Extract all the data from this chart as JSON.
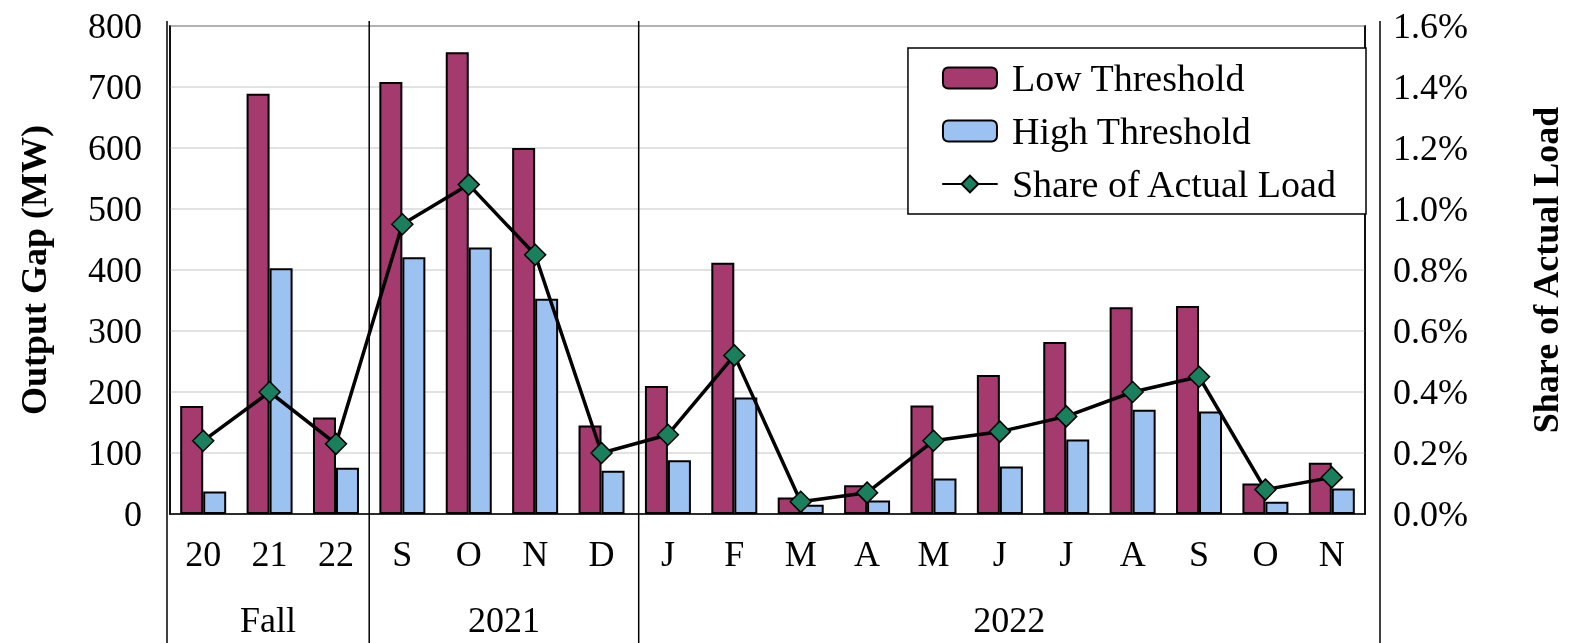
{
  "chart_data": {
    "type": "bar",
    "categories": [
      "20",
      "21",
      "22",
      "S",
      "O",
      "N",
      "D",
      "J",
      "F",
      "M",
      "A",
      "M",
      "J",
      "J",
      "A",
      "S",
      "O",
      "N"
    ],
    "series": [
      {
        "name": "Low Threshold",
        "color": "#a43a6e",
        "values": [
          177,
          689,
          158,
          708,
          757,
          600,
          145,
          210,
          412,
          27,
          47,
          178,
          228,
          282,
          339,
          341,
          50,
          84
        ]
      },
      {
        "name": "High Threshold",
        "color": "#9cc2f2",
        "values": [
          37,
          403,
          76,
          421,
          437,
          353,
          71,
          88,
          191,
          15,
          22,
          58,
          78,
          122,
          171,
          168,
          20,
          42
        ]
      },
      {
        "name": "Share of Actual Load",
        "type": "line",
        "axis": "y2",
        "color": "#000000",
        "values": [
          0.24,
          0.4,
          0.23,
          0.95,
          1.08,
          0.85,
          0.2,
          0.26,
          0.52,
          0.04,
          0.07,
          0.24,
          0.27,
          0.32,
          0.4,
          0.45,
          0.08,
          0.12
        ]
      }
    ],
    "ylabel": "Output Gap (MW)",
    "y2label": "Share of Actual Load",
    "ylim": [
      0,
      800
    ],
    "yticks": [
      0,
      100,
      200,
      300,
      400,
      500,
      600,
      700,
      800
    ],
    "y2lim": [
      0,
      1.6
    ],
    "y2ticks": [
      {
        "value": 0,
        "label": "0.0%"
      },
      {
        "value": 0.2,
        "label": "0.2%"
      },
      {
        "value": 0.4,
        "label": "0.4%"
      },
      {
        "value": 0.6,
        "label": "0.6%"
      },
      {
        "value": 0.8,
        "label": "0.8%"
      },
      {
        "value": 1.0,
        "label": "1.0%"
      },
      {
        "value": 1.2,
        "label": "1.2%"
      },
      {
        "value": 1.4,
        "label": "1.4%"
      },
      {
        "value": 1.6,
        "label": "1.6%"
      }
    ],
    "annotations": [
      "Fall",
      "2021",
      "2022"
    ],
    "grid": "y",
    "legend": "top right",
    "marker": "diamond"
  }
}
